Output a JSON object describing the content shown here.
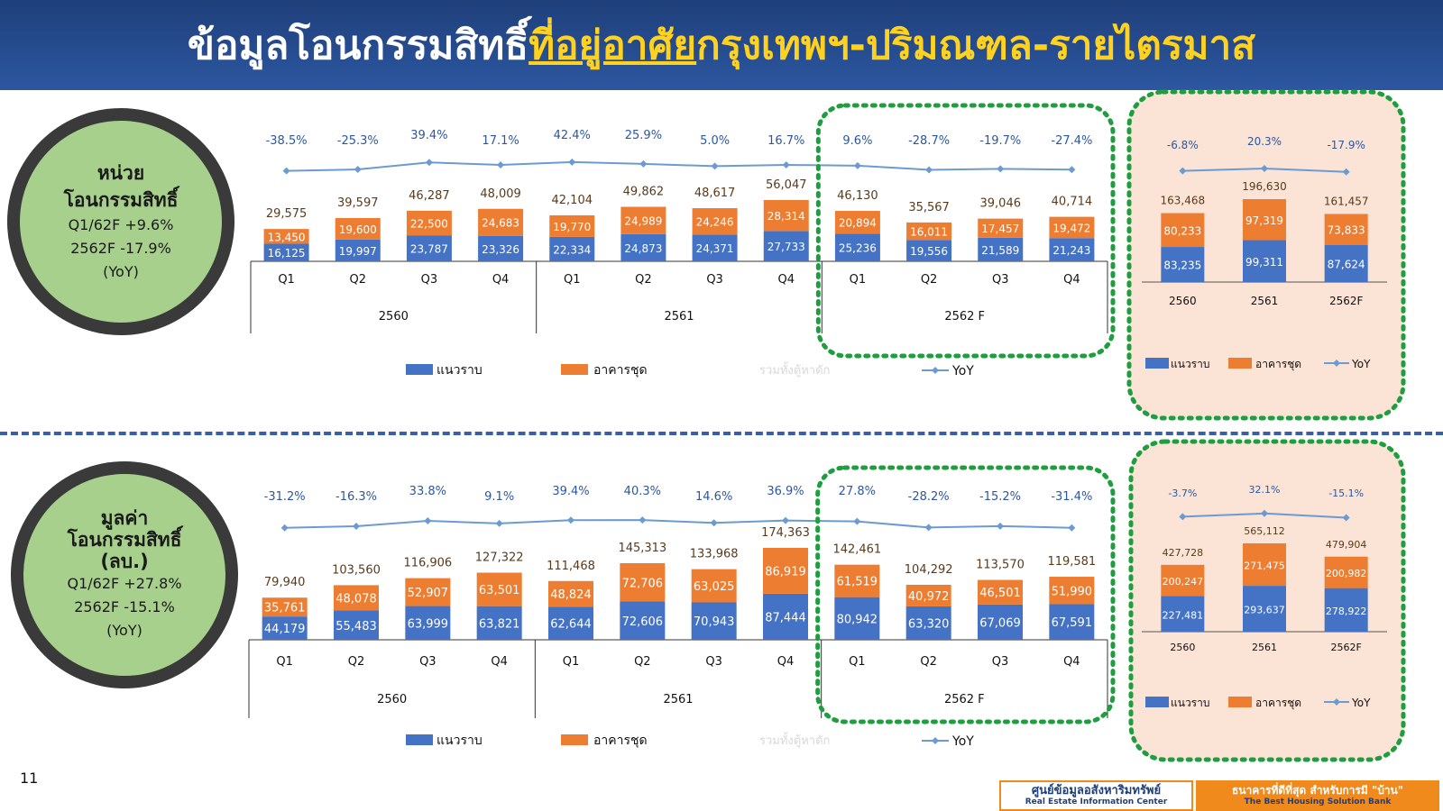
{
  "header": {
    "title_part1": "ข้อมูลโอนกรรมสิทธิ์",
    "title_part2": "ที่อยู่อาศัย",
    "title_part3": "กรุงเทพฯ-ปริมณฑล-รายไตรมาส"
  },
  "colors": {
    "header_bg": "#2c57a0",
    "title_accent": "#ffd21f",
    "landed": "#4472c4",
    "condo": "#ed7d31",
    "yoy": "#6b9bd1",
    "circle_fill": "#a7d08c",
    "forecast_border": "#1e9e3e",
    "annual_bg": "#fbe3d6"
  },
  "circles": {
    "units": {
      "title_line1": "หน่วย",
      "title_line2": "โอนกรรมสิทธิ์",
      "line1": "Q1/62F +9.6%",
      "line2": "2562F -17.9%",
      "line3": "(YoY)"
    },
    "value": {
      "title_line1": "มูลค่า",
      "title_line2": "โอนกรรมสิทธิ์",
      "title_line3": "(ลบ.)",
      "line1": "Q1/62F +27.8%",
      "line2": "2562F -15.1%",
      "line3": "(YoY)"
    }
  },
  "legend": {
    "landed": "แนวราบ",
    "condo": "อาคารชุด",
    "faded": "รวมทั้งตู้หาดัก",
    "yoy": "YoY"
  },
  "page_number": "11",
  "logo": {
    "th_name": "ศูนย์ข้อมูลอสังหาริมทรัพย์",
    "en_name": "Real Estate Information Center",
    "slogan_th": "ธนาคารที่ดีที่สุด สำหรับการมี \"บ้าน\"",
    "slogan_en": "The Best Housing Solution Bank"
  },
  "chart_data": [
    {
      "id": "units_quarterly",
      "type": "bar",
      "stacked": true,
      "title": "",
      "categories": [
        "Q1",
        "Q2",
        "Q3",
        "Q4",
        "Q1",
        "Q2",
        "Q3",
        "Q4",
        "Q1",
        "Q2",
        "Q3",
        "Q4"
      ],
      "groups": [
        "2560",
        "2561",
        "2562 F"
      ],
      "series": [
        {
          "name": "แนวราบ",
          "values": [
            16125,
            19997,
            23787,
            23326,
            22334,
            24873,
            24371,
            27733,
            25236,
            19556,
            21589,
            21243
          ]
        },
        {
          "name": "อาคารชุด",
          "values": [
            13450,
            19600,
            22500,
            24683,
            19770,
            24989,
            24246,
            28314,
            20894,
            16011,
            17457,
            19472
          ]
        }
      ],
      "totals": [
        29575,
        39597,
        46287,
        48009,
        42104,
        49862,
        48617,
        56047,
        46130,
        35567,
        39046,
        40714
      ],
      "yoy": [
        -38.5,
        -25.3,
        39.4,
        17.1,
        42.4,
        25.9,
        5.0,
        16.7,
        9.6,
        -28.7,
        -19.7,
        -27.4
      ],
      "ylim": [
        0,
        60000
      ]
    },
    {
      "id": "units_annual",
      "type": "bar",
      "stacked": true,
      "categories": [
        "2560",
        "2561",
        "2562F"
      ],
      "series": [
        {
          "name": "แนวราบ",
          "values": [
            83235,
            99311,
            87624
          ]
        },
        {
          "name": "อาคารชุด",
          "values": [
            80233,
            97319,
            73833
          ]
        }
      ],
      "totals": [
        163468,
        196630,
        161457
      ],
      "yoy": [
        -6.8,
        20.3,
        -17.9
      ],
      "ylim": [
        0,
        200000
      ]
    },
    {
      "id": "value_quarterly",
      "type": "bar",
      "stacked": true,
      "categories": [
        "Q1",
        "Q2",
        "Q3",
        "Q4",
        "Q1",
        "Q2",
        "Q3",
        "Q4",
        "Q1",
        "Q2",
        "Q3",
        "Q4"
      ],
      "groups": [
        "2560",
        "2561",
        "2562 F"
      ],
      "series": [
        {
          "name": "แนวราบ",
          "values": [
            44179,
            55483,
            63999,
            63821,
            62644,
            72606,
            70943,
            87444,
            80942,
            63320,
            67069,
            67591
          ]
        },
        {
          "name": "อาคารชุด",
          "values": [
            35761,
            48078,
            52907,
            63501,
            48824,
            72706,
            63025,
            86919,
            61519,
            40972,
            46501,
            51990
          ]
        }
      ],
      "totals": [
        79940,
        103560,
        116906,
        127322,
        111468,
        145313,
        133968,
        174363,
        142461,
        104292,
        113570,
        119581
      ],
      "yoy": [
        -31.2,
        -16.3,
        33.8,
        9.1,
        39.4,
        40.3,
        14.6,
        36.9,
        27.8,
        -28.2,
        -15.2,
        -31.4
      ],
      "ylim": [
        0,
        180000
      ]
    },
    {
      "id": "value_annual",
      "type": "bar",
      "stacked": true,
      "categories": [
        "2560",
        "2561",
        "2562F"
      ],
      "series": [
        {
          "name": "แนวราบ",
          "values": [
            227481,
            293637,
            278922
          ]
        },
        {
          "name": "อาคารชุด",
          "values": [
            200247,
            271475,
            200982
          ]
        }
      ],
      "totals": [
        427728,
        565112,
        479904
      ],
      "yoy": [
        -3.7,
        32.1,
        -15.1
      ],
      "ylim": [
        0,
        600000
      ]
    }
  ]
}
